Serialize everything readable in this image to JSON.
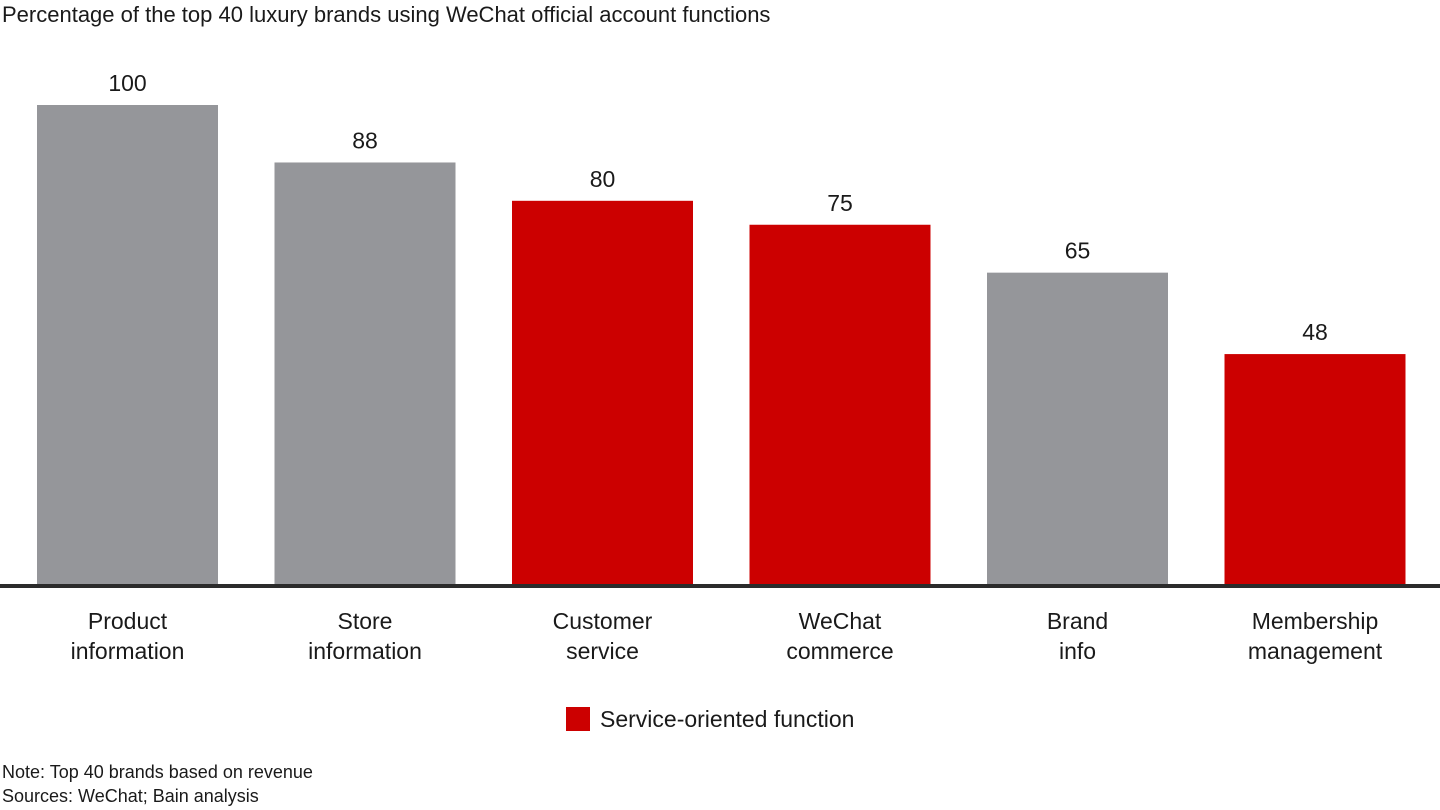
{
  "chart_data": {
    "type": "bar",
    "title": "Percentage of the top 40 luxury brands using WeChat official account functions",
    "categories": [
      [
        "Product",
        "information"
      ],
      [
        "Store",
        "information"
      ],
      [
        "Customer",
        "service"
      ],
      [
        "WeChat",
        "commerce"
      ],
      [
        "Brand",
        "info"
      ],
      [
        "Membership",
        "management"
      ]
    ],
    "values": [
      100,
      88,
      80,
      75,
      65,
      48
    ],
    "highlight": [
      false,
      false,
      true,
      true,
      false,
      true
    ],
    "ylim": [
      0,
      100
    ],
    "grid": false,
    "xlabel": "",
    "ylabel": "",
    "colors": {
      "default": "#95969a",
      "highlight": "#cc0000",
      "axis": "#2b2b2b"
    },
    "legend": {
      "label": "Service-oriented function",
      "color": "#cc0000",
      "placement": "bottom-center"
    }
  },
  "notes": {
    "note": "Note: Top 40 brands based on revenue",
    "sources": "Sources: WeChat; Bain analysis"
  }
}
